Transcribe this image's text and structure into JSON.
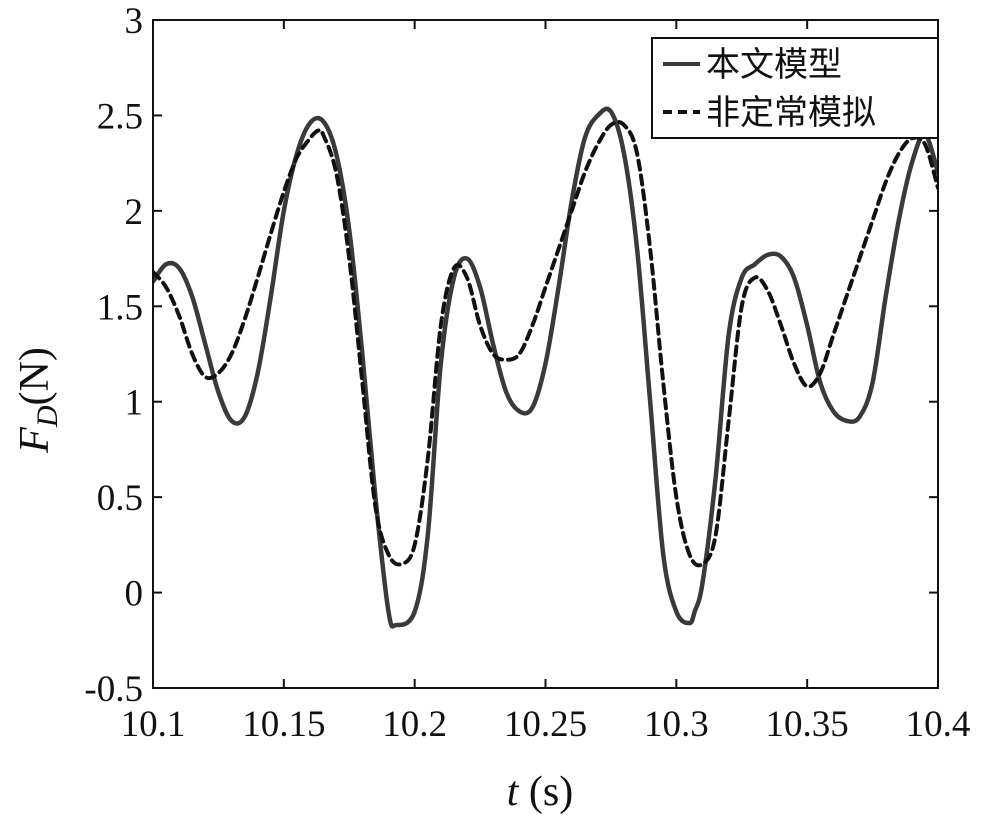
{
  "chart_data": {
    "type": "line",
    "title": "",
    "xlabel_symbol": "t",
    "xlabel_unit": " (s)",
    "ylabel_symbol": "F",
    "ylabel_subscript": "D",
    "ylabel_unit": "(N)",
    "xlim": [
      10.1,
      10.4
    ],
    "ylim": [
      -0.5,
      3.0
    ],
    "x_ticks": [
      10.1,
      10.15,
      10.2,
      10.25,
      10.3,
      10.35,
      10.4
    ],
    "x_tick_labels": [
      "10.1",
      "10.15",
      "10.2",
      "10.25",
      "10.3",
      "10.35",
      "10.4"
    ],
    "y_ticks": [
      -0.5,
      0,
      0.5,
      1,
      1.5,
      2,
      2.5,
      3
    ],
    "y_tick_labels": [
      "-0.5",
      "0",
      "0.5",
      "1",
      "1.5",
      "2",
      "2.5",
      "3"
    ],
    "grid": false,
    "legend_position": "top-right",
    "colors": {
      "model": "#3a3a3a",
      "unsteady": "#111111",
      "axis": "#111111"
    },
    "series": [
      {
        "name": "本文模型",
        "style": "solid",
        "x": [
          10.1,
          10.105,
          10.11,
          10.115,
          10.12,
          10.125,
          10.13,
          10.135,
          10.14,
          10.145,
          10.15,
          10.155,
          10.16,
          10.165,
          10.17,
          10.175,
          10.18,
          10.185,
          10.19,
          10.193,
          10.2,
          10.205,
          10.21,
          10.215,
          10.22,
          10.225,
          10.23,
          10.235,
          10.24,
          10.245,
          10.25,
          10.255,
          10.26,
          10.265,
          10.27,
          10.275,
          10.28,
          10.285,
          10.29,
          10.295,
          10.3,
          10.305,
          10.307,
          10.31,
          10.315,
          10.32,
          10.325,
          10.33,
          10.335,
          10.34,
          10.345,
          10.35,
          10.355,
          10.36,
          10.365,
          10.37,
          10.375,
          10.38,
          10.385,
          10.39,
          10.395,
          10.4
        ],
        "y": [
          1.63,
          1.72,
          1.7,
          1.55,
          1.3,
          1.05,
          0.9,
          0.92,
          1.15,
          1.55,
          2.0,
          2.3,
          2.46,
          2.47,
          2.3,
          1.9,
          1.25,
          0.5,
          -0.1,
          -0.17,
          -0.1,
          0.3,
          1.2,
          1.65,
          1.75,
          1.6,
          1.3,
          1.05,
          0.95,
          0.97,
          1.2,
          1.6,
          2.05,
          2.38,
          2.5,
          2.52,
          2.3,
          1.8,
          1.0,
          0.2,
          -0.1,
          -0.16,
          -0.1,
          0.05,
          0.6,
          1.35,
          1.65,
          1.72,
          1.77,
          1.76,
          1.65,
          1.4,
          1.1,
          0.95,
          0.9,
          0.92,
          1.1,
          1.55,
          1.95,
          2.25,
          2.4,
          2.2
        ]
      },
      {
        "name": "非定常模拟",
        "style": "dashed",
        "x": [
          10.1,
          10.105,
          10.11,
          10.115,
          10.12,
          10.125,
          10.13,
          10.135,
          10.14,
          10.145,
          10.15,
          10.155,
          10.16,
          10.163,
          10.165,
          10.17,
          10.175,
          10.18,
          10.185,
          10.19,
          10.195,
          10.2,
          10.205,
          10.21,
          10.215,
          10.22,
          10.225,
          10.23,
          10.235,
          10.24,
          10.245,
          10.25,
          10.255,
          10.26,
          10.265,
          10.27,
          10.275,
          10.28,
          10.285,
          10.29,
          10.295,
          10.3,
          10.305,
          10.31,
          10.315,
          10.32,
          10.325,
          10.33,
          10.335,
          10.34,
          10.345,
          10.35,
          10.355,
          10.36,
          10.365,
          10.37,
          10.375,
          10.38,
          10.385,
          10.39,
          10.395,
          10.4
        ],
        "y": [
          1.68,
          1.6,
          1.45,
          1.25,
          1.13,
          1.15,
          1.25,
          1.43,
          1.65,
          1.88,
          2.1,
          2.28,
          2.38,
          2.42,
          2.4,
          2.2,
          1.75,
          1.1,
          0.45,
          0.2,
          0.15,
          0.25,
          0.7,
          1.4,
          1.7,
          1.65,
          1.4,
          1.25,
          1.22,
          1.25,
          1.4,
          1.6,
          1.8,
          2.0,
          2.2,
          2.35,
          2.45,
          2.45,
          2.3,
          1.8,
          1.1,
          0.5,
          0.2,
          0.15,
          0.3,
          0.9,
          1.5,
          1.65,
          1.58,
          1.4,
          1.2,
          1.08,
          1.15,
          1.35,
          1.55,
          1.75,
          1.95,
          2.15,
          2.3,
          2.38,
          2.35,
          2.12
        ]
      }
    ]
  }
}
